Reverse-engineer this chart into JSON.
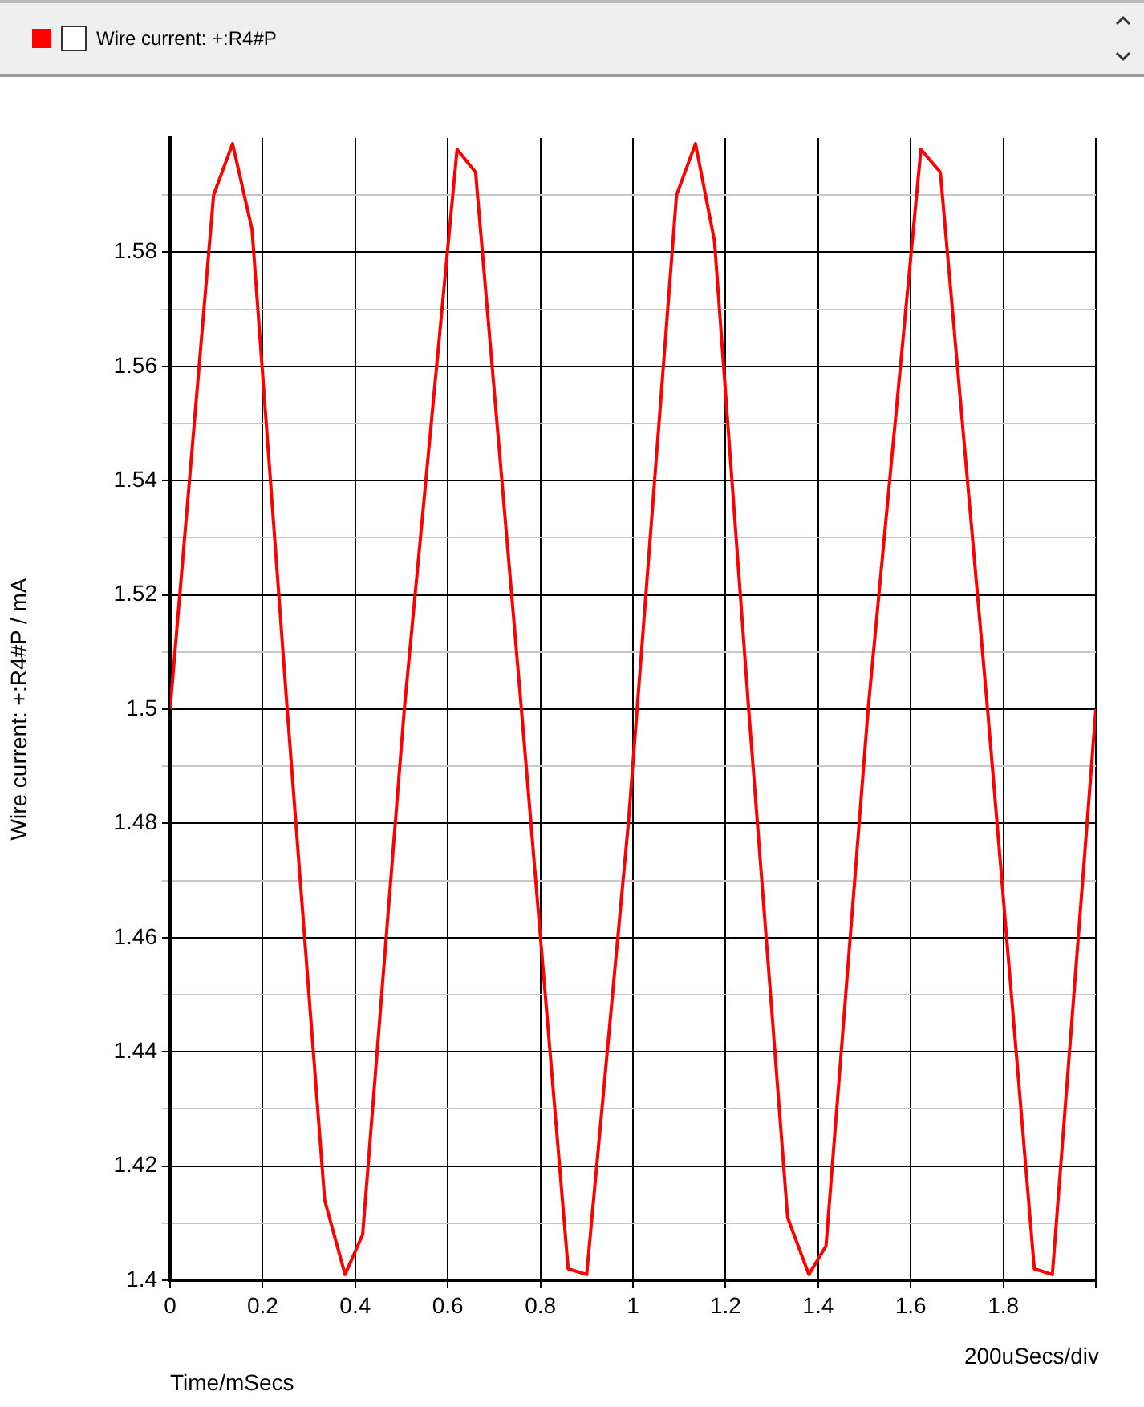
{
  "chart_data": {
    "type": "line",
    "xlabel": "Time/mSecs",
    "ylabel": "Wire current: +:R4#P / mA",
    "annotations": [
      "200uSecs/div"
    ],
    "legend": "top left",
    "grid": true,
    "marker": "none",
    "line_style": "solid",
    "xlim": [
      0,
      2
    ],
    "xticks": [
      0,
      0.2,
      0.4,
      0.6,
      0.8,
      1,
      1.2,
      1.4,
      1.6,
      1.8,
      {
        "value": 2,
        "label": null
      }
    ],
    "ylim": [
      1.4,
      1.6
    ],
    "yticks": [
      1.4,
      {
        "value": 1.41,
        "label": null
      },
      1.42,
      {
        "value": 1.43,
        "label": null
      },
      1.44,
      {
        "value": 1.45,
        "label": null
      },
      1.46,
      {
        "value": 1.47,
        "label": null
      },
      1.48,
      {
        "value": 1.49,
        "label": null
      },
      1.5,
      {
        "value": 1.51,
        "label": null
      },
      1.52,
      {
        "value": 1.53,
        "label": null
      },
      1.54,
      {
        "value": 1.55,
        "label": null
      },
      1.56,
      {
        "value": 1.57,
        "label": null
      },
      1.58,
      {
        "value": 1.59,
        "label": null
      }
    ],
    "series": [
      {
        "name": "Wire current: +:R4#P",
        "color": "#ff0000",
        "x": [
          0,
          0.094,
          0.135,
          0.177,
          0.253,
          0.334,
          0.378,
          0.416,
          0.506,
          0.62,
          0.66,
          0.759,
          0.86,
          0.9,
          0.99,
          1.094,
          1.135,
          1.176,
          1.25,
          1.334,
          1.38,
          1.417,
          1.508,
          1.622,
          1.664,
          1.766,
          1.867,
          1.906,
          2
        ],
        "values": [
          1.5,
          1.59,
          1.599,
          1.584,
          1.5,
          1.414,
          1.401,
          1.408,
          1.5,
          1.598,
          1.594,
          1.5,
          1.402,
          1.401,
          1.48,
          1.59,
          1.599,
          1.582,
          1.5,
          1.411,
          1.401,
          1.406,
          1.5,
          1.598,
          1.594,
          1.5,
          1.402,
          1.401,
          1.5
        ]
      }
    ]
  }
}
